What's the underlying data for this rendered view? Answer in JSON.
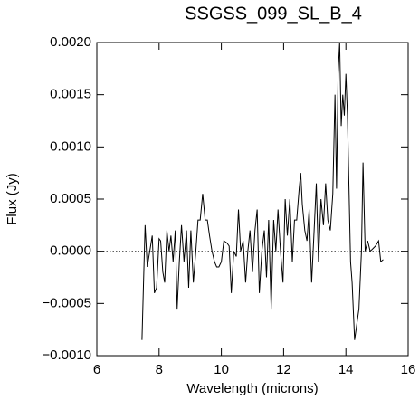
{
  "chart_data": {
    "type": "line",
    "title": "SSGSS_099_SL_B_4",
    "x_label": "Wavelength (microns)",
    "y_label": "Flux (Jy)",
    "x": [
      7.45,
      7.55,
      7.62,
      7.7,
      7.78,
      7.85,
      7.92,
      8.0,
      8.05,
      8.12,
      8.18,
      8.25,
      8.32,
      8.38,
      8.45,
      8.52,
      8.58,
      8.65,
      8.72,
      8.8,
      8.88,
      8.95,
      9.02,
      9.1,
      9.18,
      9.25,
      9.32,
      9.4,
      9.48,
      9.55,
      9.62,
      9.7,
      9.78,
      9.85,
      9.92,
      10.0,
      10.08,
      10.18,
      10.25,
      10.32,
      10.4,
      10.48,
      10.55,
      10.62,
      10.7,
      10.78,
      10.85,
      10.92,
      11.0,
      11.08,
      11.15,
      11.22,
      11.3,
      11.38,
      11.45,
      11.52,
      11.6,
      11.68,
      11.75,
      11.82,
      11.9,
      11.98,
      12.05,
      12.12,
      12.2,
      12.28,
      12.35,
      12.42,
      12.5,
      12.55,
      12.6,
      12.68,
      12.75,
      12.82,
      12.9,
      12.98,
      13.05,
      13.12,
      13.2,
      13.28,
      13.35,
      13.42,
      13.5,
      13.58,
      13.65,
      13.7,
      13.75,
      13.8,
      13.85,
      13.9,
      13.95,
      14.0,
      14.05,
      14.1,
      14.15,
      14.2,
      14.28,
      14.35,
      14.42,
      14.5,
      14.55,
      14.62,
      14.7,
      14.78,
      14.85,
      14.95,
      15.05,
      15.12,
      15.2
    ],
    "series": [
      {
        "color": "#000000",
        "values": [
          -0.00085,
          0.00025,
          -0.00015,
          0.0,
          0.00015,
          -0.0004,
          -0.00035,
          0.00012,
          0.0001,
          -0.0002,
          -0.0003,
          0.0002,
          0.0,
          0.00015,
          -0.0001,
          0.0002,
          -0.00055,
          -0.0001,
          0.00025,
          -0.0001,
          0.0002,
          -0.00035,
          0.0002,
          -0.0003,
          0.0,
          0.0003,
          0.0003,
          0.00055,
          0.0003,
          0.0003,
          0.00015,
          0.0,
          -0.0001,
          -0.00015,
          -0.00015,
          -0.0001,
          0.0001,
          8e-05,
          5e-05,
          -0.0004,
          0.0,
          -5e-05,
          0.0004,
          0.0,
          0.0001,
          -0.0003,
          0.0,
          0.0002,
          -0.0002,
          0.0002,
          0.0004,
          -0.0004,
          0.0,
          0.0002,
          -0.00025,
          0.0003,
          -0.00055,
          0.0003,
          0.0,
          0.0004,
          0.0,
          -0.0003,
          0.0005,
          0.00015,
          0.0005,
          -0.0001,
          0.0003,
          0.0003,
          0.0006,
          0.00075,
          0.00045,
          0.0002,
          0.0001,
          0.0004,
          -0.0003,
          0.0002,
          0.00065,
          -0.0001,
          0.0005,
          0.00025,
          0.00065,
          0.0003,
          0.0002,
          0.00055,
          0.0015,
          0.0006,
          0.0017,
          0.002,
          0.0012,
          0.0015,
          0.0013,
          0.0017,
          0.0013,
          0.0006,
          -0.0001,
          -0.0003,
          -0.00085,
          -0.0007,
          -0.00055,
          0.0,
          0.00085,
          0.0,
          0.0001,
          0.0,
          2e-05,
          5e-05,
          0.0001,
          -0.0001,
          -8e-05
        ]
      }
    ],
    "xlim": [
      6,
      16
    ],
    "xticks": [
      6,
      8,
      10,
      12,
      14,
      16
    ],
    "ylim": [
      -0.001,
      0.002
    ],
    "yticks": [
      {
        "value": -0.001,
        "label": "−0.0010"
      },
      {
        "value": -0.0005,
        "label": "−0.0005"
      },
      {
        "value": 0,
        "label": "0.0000"
      },
      {
        "value": 0.0005,
        "label": "0.0005"
      },
      {
        "value": 0.001,
        "label": "0.0010"
      },
      {
        "value": 0.0015,
        "label": "0.0015"
      },
      {
        "value": 0.002,
        "label": "0.0020"
      }
    ],
    "zero_line": true
  }
}
